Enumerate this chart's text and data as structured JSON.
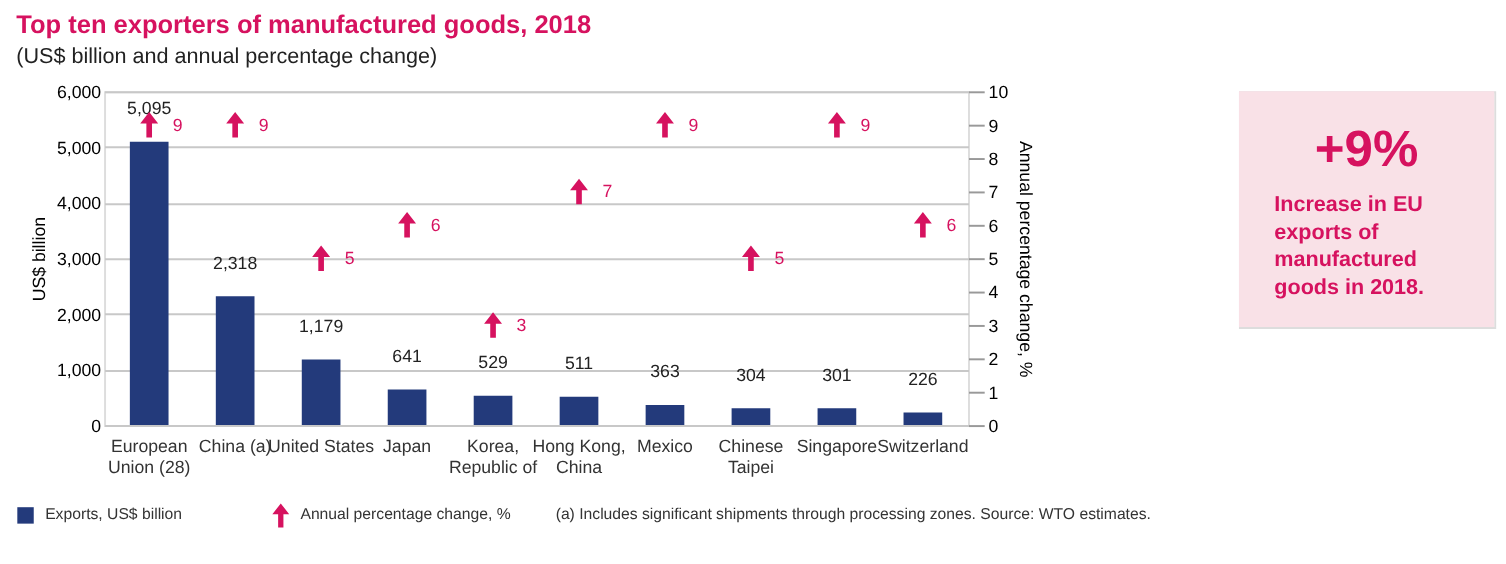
{
  "chart_data": {
    "type": "bar",
    "title": "Top ten exporters of manufactured goods, 2018",
    "subtitle": "(US$ billion and annual percentage change)",
    "ylabel": "US$ billion",
    "y2label": "Annual percentage change, %",
    "categories": [
      "European Union (28)",
      "China (a)",
      "United States",
      "Japan",
      "Korea, Republic of",
      "Hong Kong, China",
      "Mexico",
      "Chinese Taipei",
      "Singapore",
      "Switzerland"
    ],
    "series": [
      {
        "name": "Exports, US$ billion",
        "color": "#233a7b",
        "values": [
          5095,
          2318,
          1179,
          641,
          529,
          511,
          363,
          304,
          301,
          226
        ],
        "value_labels": [
          "5,095",
          "2,318",
          "1,179",
          "641",
          "529",
          "511",
          "363",
          "304",
          "301",
          "226"
        ]
      },
      {
        "name": "Annual percentage change, %",
        "type": "scatter",
        "axis": "y2",
        "color": "#d6125f",
        "marker": "triangle",
        "values": [
          9,
          9,
          5,
          6,
          3,
          7,
          9,
          5,
          9,
          6
        ]
      }
    ],
    "ylim": [
      0,
      6000
    ],
    "yticks": [
      0,
      {
        "value": 1000,
        "label": "1,000"
      },
      {
        "value": 2000,
        "label": "2,000"
      },
      {
        "value": 3000,
        "label": "3,000"
      },
      {
        "value": 4000,
        "label": "4,000"
      },
      {
        "value": 5000,
        "label": "5,000"
      },
      {
        "value": 6000,
        "label": "6,000"
      }
    ],
    "y2lim": [
      0,
      10
    ],
    "y2ticks": [
      0,
      1,
      2,
      3,
      4,
      5,
      6,
      7,
      8,
      9,
      10
    ],
    "grid": "y",
    "legend": "bottom",
    "data_labels": true,
    "annotations": [
      "+9%",
      "Increase in EU exports of manufactured goods in 2018.",
      "(a) Includes significant shipments through processing zones.  Source: WTO estimates."
    ]
  }
}
